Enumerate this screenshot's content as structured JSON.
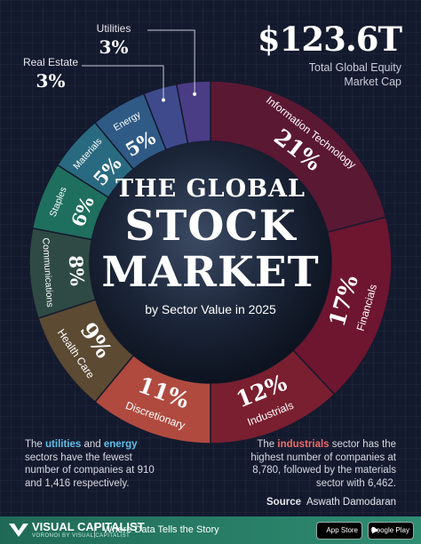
{
  "header": {
    "total_value": "$123.6T",
    "total_label": "Total Global Equity Market Cap"
  },
  "title": {
    "line1": "THE GLOBAL",
    "line2": "STOCK",
    "line3": "MARKET",
    "subtitle": "by Sector Value in 2025"
  },
  "chart_data": {
    "type": "pie",
    "sectors": [
      {
        "name": "Information Technology",
        "label": "21%",
        "value": 21,
        "color": "#5b1833"
      },
      {
        "name": "Financials",
        "label": "17%",
        "value": 17,
        "color": "#6e1530"
      },
      {
        "name": "Industrials",
        "label": "12%",
        "value": 12,
        "color": "#7a1f30"
      },
      {
        "name": "Discretionary",
        "label": "11%",
        "value": 11,
        "color": "#b04a3f"
      },
      {
        "name": "Health Care",
        "label": "9%",
        "value": 9,
        "color": "#5c4a33"
      },
      {
        "name": "Communications",
        "label": "8%",
        "value": 8,
        "color": "#2f4a44"
      },
      {
        "name": "Staples",
        "label": "6%",
        "value": 6,
        "color": "#1f6f5e"
      },
      {
        "name": "Materials",
        "label": "5%",
        "value": 5,
        "color": "#2a6a80"
      },
      {
        "name": "Energy",
        "label": "5%",
        "value": 5,
        "color": "#2f5a85"
      },
      {
        "name": "Real Estate",
        "label": "3%",
        "value": 3,
        "color": "#3e4a8c"
      },
      {
        "name": "Utilities",
        "label": "3%",
        "value": 3,
        "color": "#4b3c86"
      }
    ]
  },
  "notes": {
    "left_pre": "The ",
    "left_hl1": "utilities",
    "left_mid": " and ",
    "left_hl2": "energy",
    "left_post": " sectors have the fewest number of companies at 910 and 1,416 respectively.",
    "right_pre": "The ",
    "right_hl": "industrials",
    "right_post": " sector has the highest number of companies at 8,780, followed by the materials sector with 6,462."
  },
  "source": {
    "label": "Source",
    "name": "Aswath Damodaran"
  },
  "footer": {
    "brand": "VISUAL CAPITALIST",
    "brand_sub": "VORONOI BY VISUAL CAPITALIST",
    "tagline": "Where Data Tells the Story",
    "app_store": "App Store",
    "google_play": "Google Play"
  }
}
